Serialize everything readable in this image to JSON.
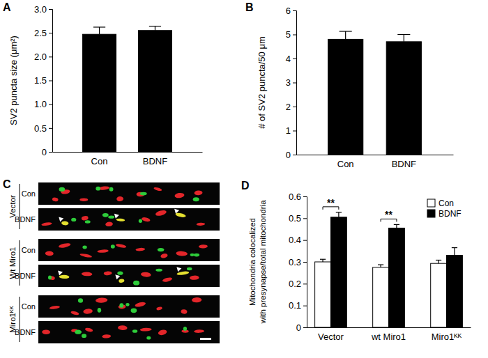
{
  "chart_data": [
    {
      "type": "bar",
      "title": "A",
      "y_label": "SV2 puncta size (μm²)",
      "categories": [
        "Con",
        "BDNF"
      ],
      "values": [
        2.47,
        2.55
      ],
      "errors": [
        0.15,
        0.09
      ],
      "color": "#000000",
      "ylim": [
        0,
        3
      ],
      "yticks": [
        0,
        0.5,
        {
          "value": 1,
          "label": "1.0"
        },
        1.5,
        {
          "value": 2,
          "label": "2.0"
        },
        2.5,
        {
          "value": 3,
          "label": "3.0"
        }
      ]
    },
    {
      "type": "bar",
      "title": "B",
      "y_label": "# of SV2 puncta/50 μm",
      "categories": [
        "Con",
        "BDNF"
      ],
      "values": [
        4.8,
        4.7
      ],
      "errors": [
        0.33,
        0.3
      ],
      "color": "#000000",
      "ylim": [
        0,
        6
      ],
      "yticks": [
        0,
        1,
        2,
        3,
        4,
        5,
        6
      ]
    },
    {
      "type": "micrograph",
      "title": "C",
      "groups": [
        {
          "label": "Vector",
          "rows": [
            "Con",
            "BDNF"
          ]
        },
        {
          "label": "Wt Miro1",
          "rows": [
            "Con",
            "BDNF"
          ]
        },
        {
          "label": "Miro1ᴷᴷ",
          "rows": [
            "Con",
            "BDNF"
          ]
        }
      ]
    },
    {
      "type": "bar",
      "title": "D",
      "y_label": [
        "Mitochondria colocalized",
        "with presynapse/total mitochondria"
      ],
      "categories": [
        "Vector",
        "wt Miro1",
        "Miro1ᴷᴷ"
      ],
      "series": [
        {
          "name": "Con",
          "color": "#ffffff",
          "values": [
            0.3,
            0.275,
            0.293
          ],
          "errors": [
            0.012,
            0.012,
            0.015
          ]
        },
        {
          "name": "BDNF",
          "color": "#000000",
          "values": [
            0.505,
            0.455,
            0.33
          ],
          "errors": [
            0.022,
            0.016,
            0.035
          ]
        }
      ],
      "ylim": [
        0,
        0.6
      ],
      "yticks": [
        0,
        0.1,
        0.2,
        0.3,
        0.4,
        0.5,
        0.6
      ],
      "legend": "upper right",
      "annotations": [
        {
          "text": "**",
          "category": 0
        },
        {
          "text": "**",
          "category": 1
        }
      ]
    }
  ]
}
